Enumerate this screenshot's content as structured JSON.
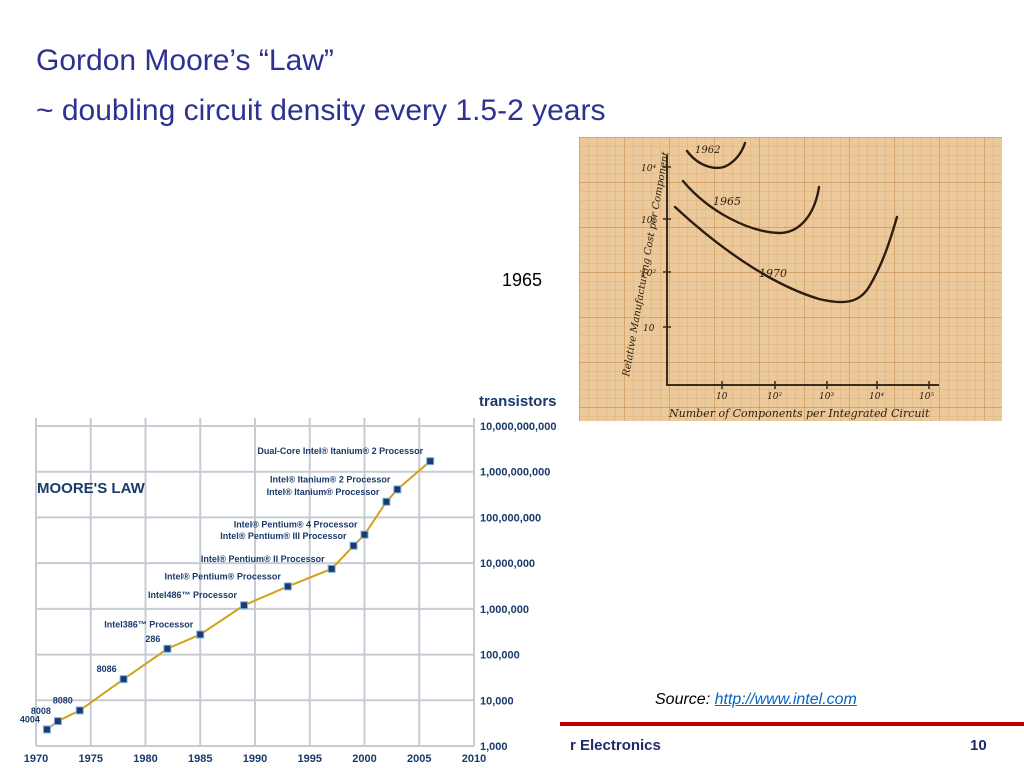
{
  "slide": {
    "title_line1": "Gordon Moore’s “Law”",
    "title_line2": "~ doubling circuit density every 1.5-2 years",
    "year_label": "1965",
    "source_prefix": "Source:",
    "source_link": "http://www.intel.com",
    "footer_course": "r Electronics",
    "footer_page": "10"
  },
  "colors": {
    "title": "#2e3192",
    "line": "#d4a017",
    "point": "#1b3b6f",
    "footer_bar": "#c00000",
    "footer_text": "#1f2a6b",
    "link": "#0563c1",
    "paper": "#e9c99a"
  },
  "sketch": {
    "ylabel": "Relative Manufacturing Cost per Component",
    "xlabel": "Number of Components per Integrated Circuit",
    "y_ticks": [
      "10",
      "10²",
      "10³",
      "10⁴"
    ],
    "x_ticks": [
      "10",
      "10²",
      "10³",
      "10⁴",
      "10⁵"
    ],
    "curve_labels": [
      "1962",
      "1965",
      "1970"
    ]
  },
  "chart_data": {
    "type": "line",
    "title": "MOORE'S LAW",
    "ylabel": "transistors",
    "yscale": "log",
    "xlim": [
      1970,
      2010
    ],
    "ylim": [
      1000,
      10000000000
    ],
    "grid": true,
    "x_ticks": [
      "1970",
      "1975",
      "1980",
      "1985",
      "1990",
      "1995",
      "2000",
      "2005",
      "2010"
    ],
    "y_ticks": [
      "10,000,000,000",
      "1,000,000,000",
      "100,000,000",
      "10,000,000",
      "1,000,000",
      "100,000",
      "10,000",
      "1,000"
    ],
    "series": [
      {
        "points": [
          {
            "x": 1971,
            "y": 2300,
            "label": "4004"
          },
          {
            "x": 1972,
            "y": 3500,
            "label": "8008"
          },
          {
            "x": 1974,
            "y": 6000,
            "label": "8080"
          },
          {
            "x": 1978,
            "y": 29000,
            "label": "8086"
          },
          {
            "x": 1982,
            "y": 134000,
            "label": "286"
          },
          {
            "x": 1985,
            "y": 275000,
            "label": "Intel386™ Processor"
          },
          {
            "x": 1989,
            "y": 1200000,
            "label": "Intel486™ Processor"
          },
          {
            "x": 1993,
            "y": 3100000,
            "label": "Intel® Pentium® Processor"
          },
          {
            "x": 1997,
            "y": 7500000,
            "label": "Intel® Pentium® II Processor"
          },
          {
            "x": 1999,
            "y": 24000000,
            "label": "Intel® Pentium® III Processor"
          },
          {
            "x": 2000,
            "y": 42000000,
            "label": "Intel® Pentium® 4 Processor"
          },
          {
            "x": 2002,
            "y": 220000000,
            "label": "Intel® Itanium® Processor"
          },
          {
            "x": 2003,
            "y": 410000000,
            "label": "Intel® Itanium® 2 Processor"
          },
          {
            "x": 2006,
            "y": 1700000000,
            "label": "Dual-Core Intel® Itanium® 2 Processor"
          }
        ]
      }
    ]
  }
}
